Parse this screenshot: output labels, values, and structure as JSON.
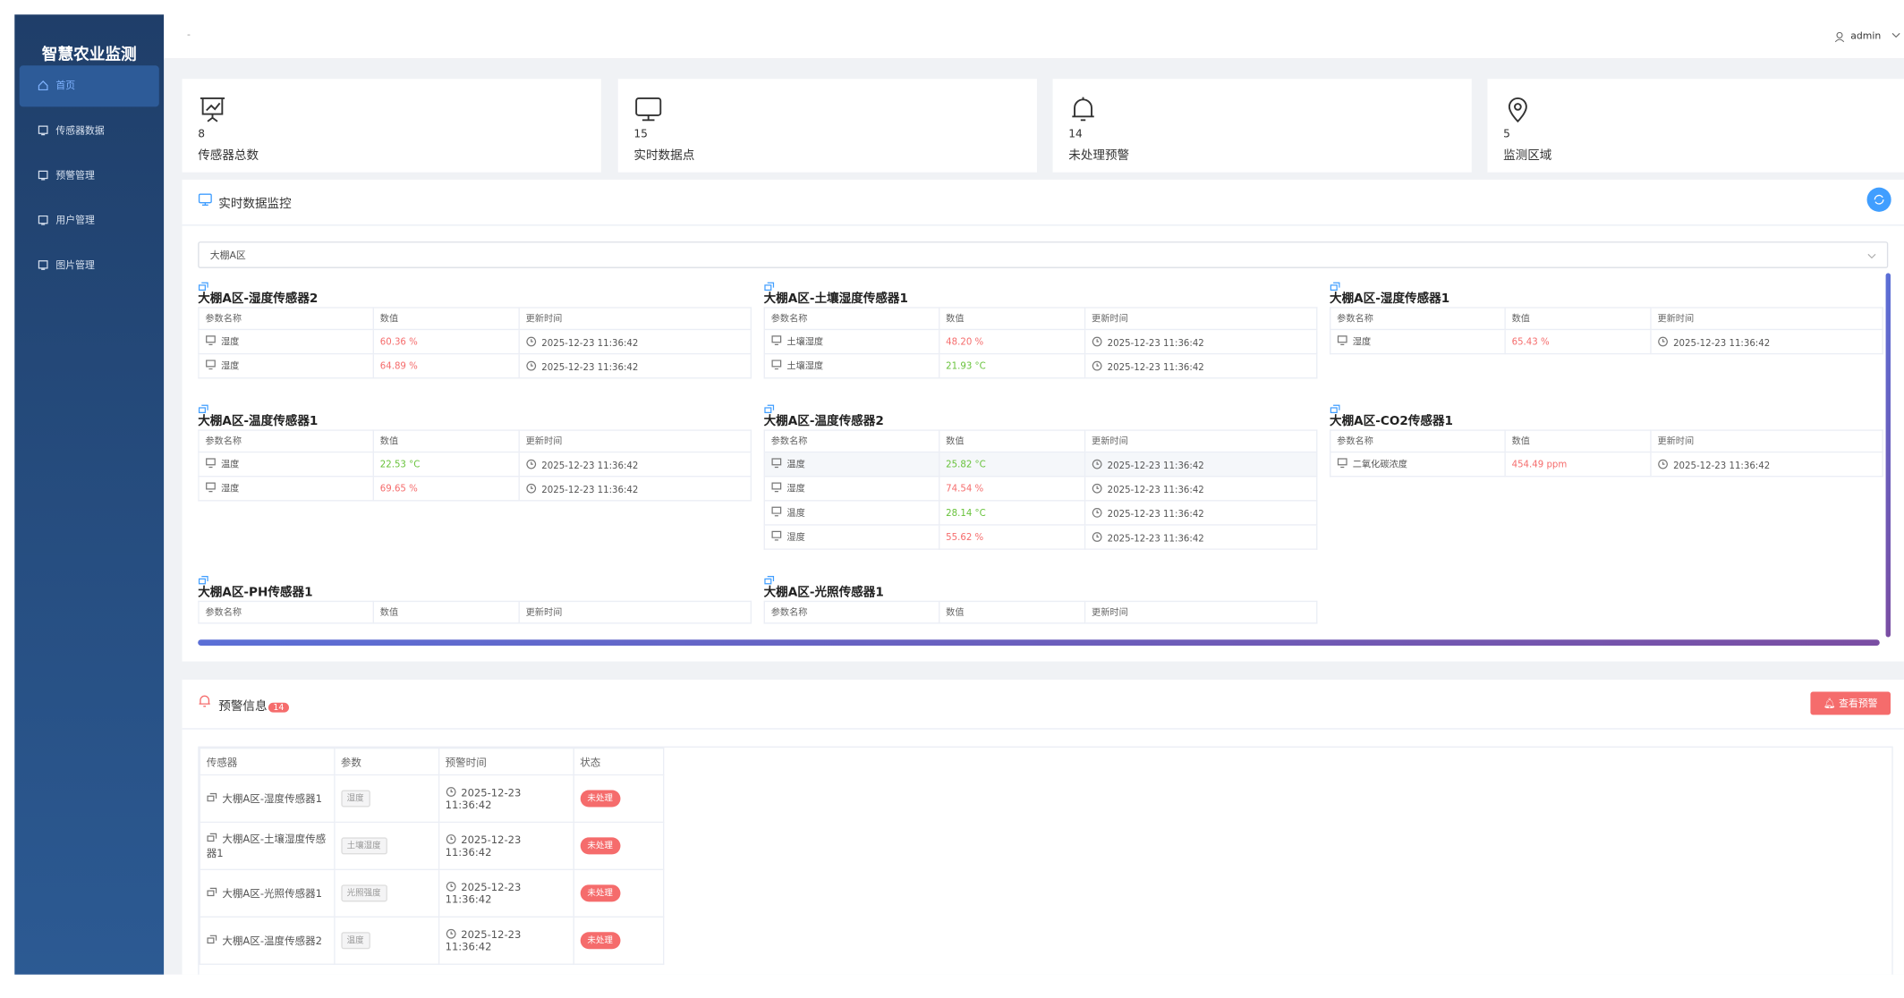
{
  "sidebar": {
    "title": "智慧农业监测",
    "menu": [
      "首页",
      "传感器数据",
      "预警管理",
      "用户管理",
      "图片管理"
    ]
  },
  "header": {
    "breadcrumb": "-",
    "user": "admin"
  },
  "stats": [
    {
      "value": 8,
      "label": "传感器总数"
    },
    {
      "value": 15,
      "label": "实时数据点"
    },
    {
      "value": 14,
      "label": "未处理预警"
    },
    {
      "value": 5,
      "label": "监测区域"
    }
  ],
  "realtime": {
    "title": "实时数据监控",
    "area": "大棚A区",
    "columns": [
      "参数名称",
      "数值",
      "更新时间"
    ],
    "sensors": [
      {
        "name": "大棚A区-湿度传感器2",
        "rows": [
          {
            "param": "湿度",
            "value": "60.36 %",
            "color": "#f56c6c",
            "time": "2025-12-23 11:36:42"
          },
          {
            "param": "湿度",
            "value": "64.89 %",
            "color": "#f56c6c",
            "time": "2025-12-23 11:36:42"
          }
        ]
      },
      {
        "name": "大棚A区-土壤湿度传感器1",
        "rows": [
          {
            "param": "土壤湿度",
            "value": "48.20 %",
            "color": "#f56c6c",
            "time": "2025-12-23 11:36:42"
          },
          {
            "param": "土壤湿度",
            "value": "21.93 °C",
            "color": "#67c23a",
            "time": "2025-12-23 11:36:42"
          }
        ]
      },
      {
        "name": "大棚A区-湿度传感器1",
        "rows": [
          {
            "param": "湿度",
            "value": "65.43 %",
            "color": "#f56c6c",
            "time": "2025-12-23 11:36:42"
          }
        ]
      },
      {
        "name": "大棚A区-温度传感器1",
        "rows": [
          {
            "param": "温度",
            "value": "22.53 °C",
            "color": "#67c23a",
            "time": "2025-12-23 11:36:42"
          },
          {
            "param": "湿度",
            "value": "69.65 %",
            "color": "#f56c6c",
            "time": "2025-12-23 11:36:42"
          }
        ]
      },
      {
        "name": "大棚A区-温度传感器2",
        "rows": [
          {
            "param": "温度",
            "value": "25.82 °C",
            "color": "#67c23a",
            "time": "2025-12-23 11:36:42"
          },
          {
            "param": "湿度",
            "value": "74.54 %",
            "color": "#f56c6c",
            "time": "2025-12-23 11:36:42"
          },
          {
            "param": "温度",
            "value": "28.14 °C",
            "color": "#67c23a",
            "time": "2025-12-23 11:36:42"
          },
          {
            "param": "湿度",
            "value": "55.62 %",
            "color": "#f56c6c",
            "time": "2025-12-23 11:36:42"
          }
        ]
      },
      {
        "name": "大棚A区-CO2传感器1",
        "rows": [
          {
            "param": "二氧化碳浓度",
            "value": "454.49 ppm",
            "color": "#f56c6c",
            "time": "2025-12-23 11:36:42"
          }
        ]
      },
      {
        "name": "大棚A区-PH传感器1",
        "rows": []
      },
      {
        "name": "大棚A区-光照传感器1",
        "rows": []
      }
    ]
  },
  "alerts": {
    "title": "预警信息",
    "count": 14,
    "button": "查看预警",
    "columns": [
      "传感器",
      "参数",
      "预警时间",
      "状态"
    ],
    "rows": [
      {
        "sensor": "大棚A区-湿度传感器1",
        "param": "湿度",
        "time": "2025-12-23 11:36:42",
        "status": "未处理"
      },
      {
        "sensor": "大棚A区-土壤湿度传感器1",
        "param": "土壤湿度",
        "time": "2025-12-23 11:36:42",
        "status": "未处理"
      },
      {
        "sensor": "大棚A区-光照传感器1",
        "param": "光照强度",
        "time": "2025-12-23 11:36:42",
        "status": "未处理"
      },
      {
        "sensor": "大棚A区-温度传感器2",
        "param": "温度",
        "time": "2025-12-23 11:36:42",
        "status": "未处理"
      }
    ]
  }
}
